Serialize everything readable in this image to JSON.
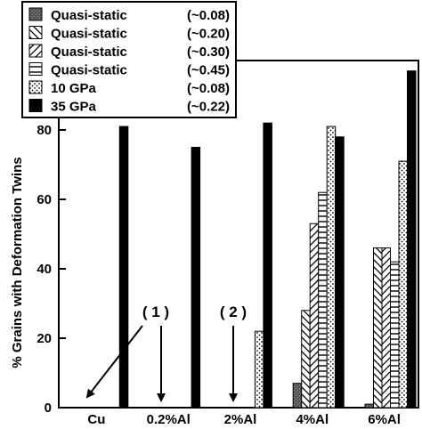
{
  "chart_data": {
    "type": "bar",
    "title": "",
    "xlabel": "",
    "ylabel": "% Grains with Deformation Twins",
    "categories": [
      "Cu",
      "0.2%Al",
      "2%Al",
      "4%Al",
      "6%Al"
    ],
    "yticks": [
      0,
      20,
      40,
      60,
      80
    ],
    "ylim": [
      0,
      100
    ],
    "grid": false,
    "legend_position": "top-left",
    "series": [
      {
        "name": "Quasi-static",
        "strain": "(~0.08)",
        "pattern": "dark-gray",
        "values": [
          0,
          0,
          0,
          7,
          1
        ]
      },
      {
        "name": "Quasi-static",
        "strain": "(~0.20)",
        "pattern": "back-diagonal",
        "values": [
          0,
          0,
          0,
          28,
          46
        ]
      },
      {
        "name": "Quasi-static",
        "strain": "(~0.30)",
        "pattern": "forward-diagonal",
        "values": [
          0,
          0,
          0,
          53,
          46
        ]
      },
      {
        "name": "Quasi-static",
        "strain": "(~0.45)",
        "pattern": "horizontal-lines",
        "values": [
          0,
          0,
          0,
          62,
          42
        ]
      },
      {
        "name": "10 GPa",
        "strain": "(~0.08)",
        "pattern": "dots",
        "values": [
          0,
          0,
          22,
          81,
          71
        ]
      },
      {
        "name": "35 GPa",
        "strain": "(~0.22)",
        "pattern": "black",
        "values": [
          81,
          75,
          82,
          78,
          97
        ]
      }
    ],
    "annotations": [
      {
        "text": "( 1 )"
      },
      {
        "text": "( 2 )"
      }
    ]
  }
}
